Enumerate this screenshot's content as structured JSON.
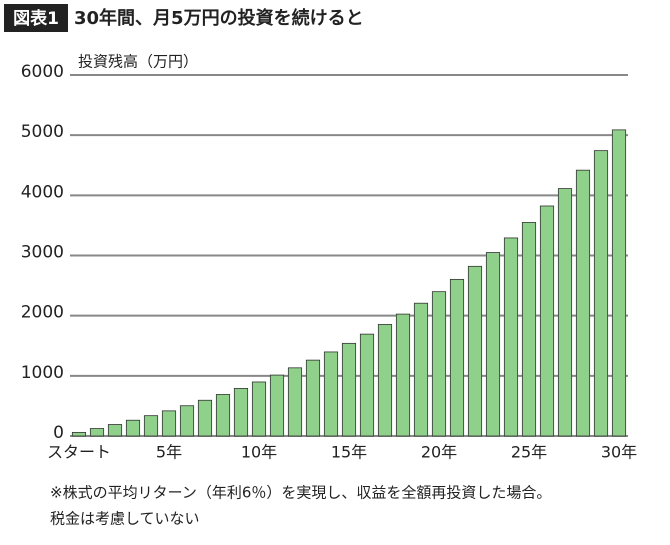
{
  "chart_data": {
    "type": "bar",
    "badge": "図表1",
    "title": "30年間、月5万円の投資を続けると",
    "y_label": "投資残高（万円）",
    "categories": [
      "スタート",
      null,
      null,
      null,
      null,
      "5年",
      null,
      null,
      null,
      null,
      "10年",
      null,
      null,
      null,
      null,
      "15年",
      null,
      null,
      null,
      null,
      "20年",
      null,
      null,
      null,
      null,
      "25年",
      null,
      null,
      null,
      null,
      "30年"
    ],
    "values": [
      60,
      124,
      191,
      262,
      338,
      418,
      503,
      594,
      690,
      791,
      898,
      1012,
      1133,
      1261,
      1397,
      1540,
      1693,
      1854,
      2026,
      2207,
      2399,
      2603,
      2820,
      3049,
      3292,
      3549,
      3823,
      4112,
      4418,
      4743,
      5088
    ],
    "color": "#8fd08a",
    "ylim": [
      0,
      6000
    ],
    "yticks": [
      0,
      1000,
      2000,
      3000,
      4000,
      5000,
      6000
    ],
    "grid": true,
    "notes": [
      "※株式の平均リターン（年利6％）を実現し、収益を全額再投資した場合。",
      "税金は考慮していない"
    ]
  }
}
